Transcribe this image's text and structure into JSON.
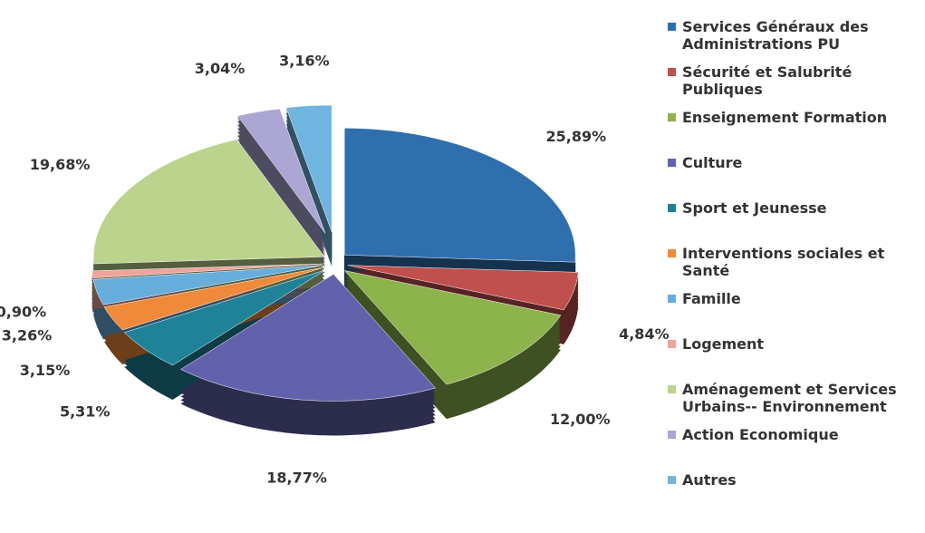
{
  "chart_data": {
    "type": "pie",
    "categories": [
      "Services Généraux des Administrations PU",
      "Sécurité et Salubrité Publiques",
      "Enseignement Formation",
      "Culture",
      "Sport et Jeunesse",
      "Interventions sociales et Santé",
      "Famille",
      "Logement",
      "Aménagement et Services Urbains-- Environnement",
      "Action Economique",
      "Autres"
    ],
    "values": [
      25.89,
      4.84,
      12.0,
      18.77,
      5.31,
      3.15,
      3.26,
      0.9,
      19.68,
      3.04,
      3.16
    ],
    "value_labels": [
      "25,89%",
      "4,84%",
      "12,00%",
      "18,77%",
      "5,31%",
      "3,15%",
      "3,26%",
      "0,90%",
      "19,68%",
      "3,04%",
      "3,16%"
    ],
    "colors": [
      "#2f6fae",
      "#c0504d",
      "#8db34d",
      "#6262ac",
      "#1f8299",
      "#f08a3a",
      "#68aedc",
      "#eea49c",
      "#bcd38e",
      "#aba6d4",
      "#70b4e0"
    ],
    "legend": "right"
  }
}
